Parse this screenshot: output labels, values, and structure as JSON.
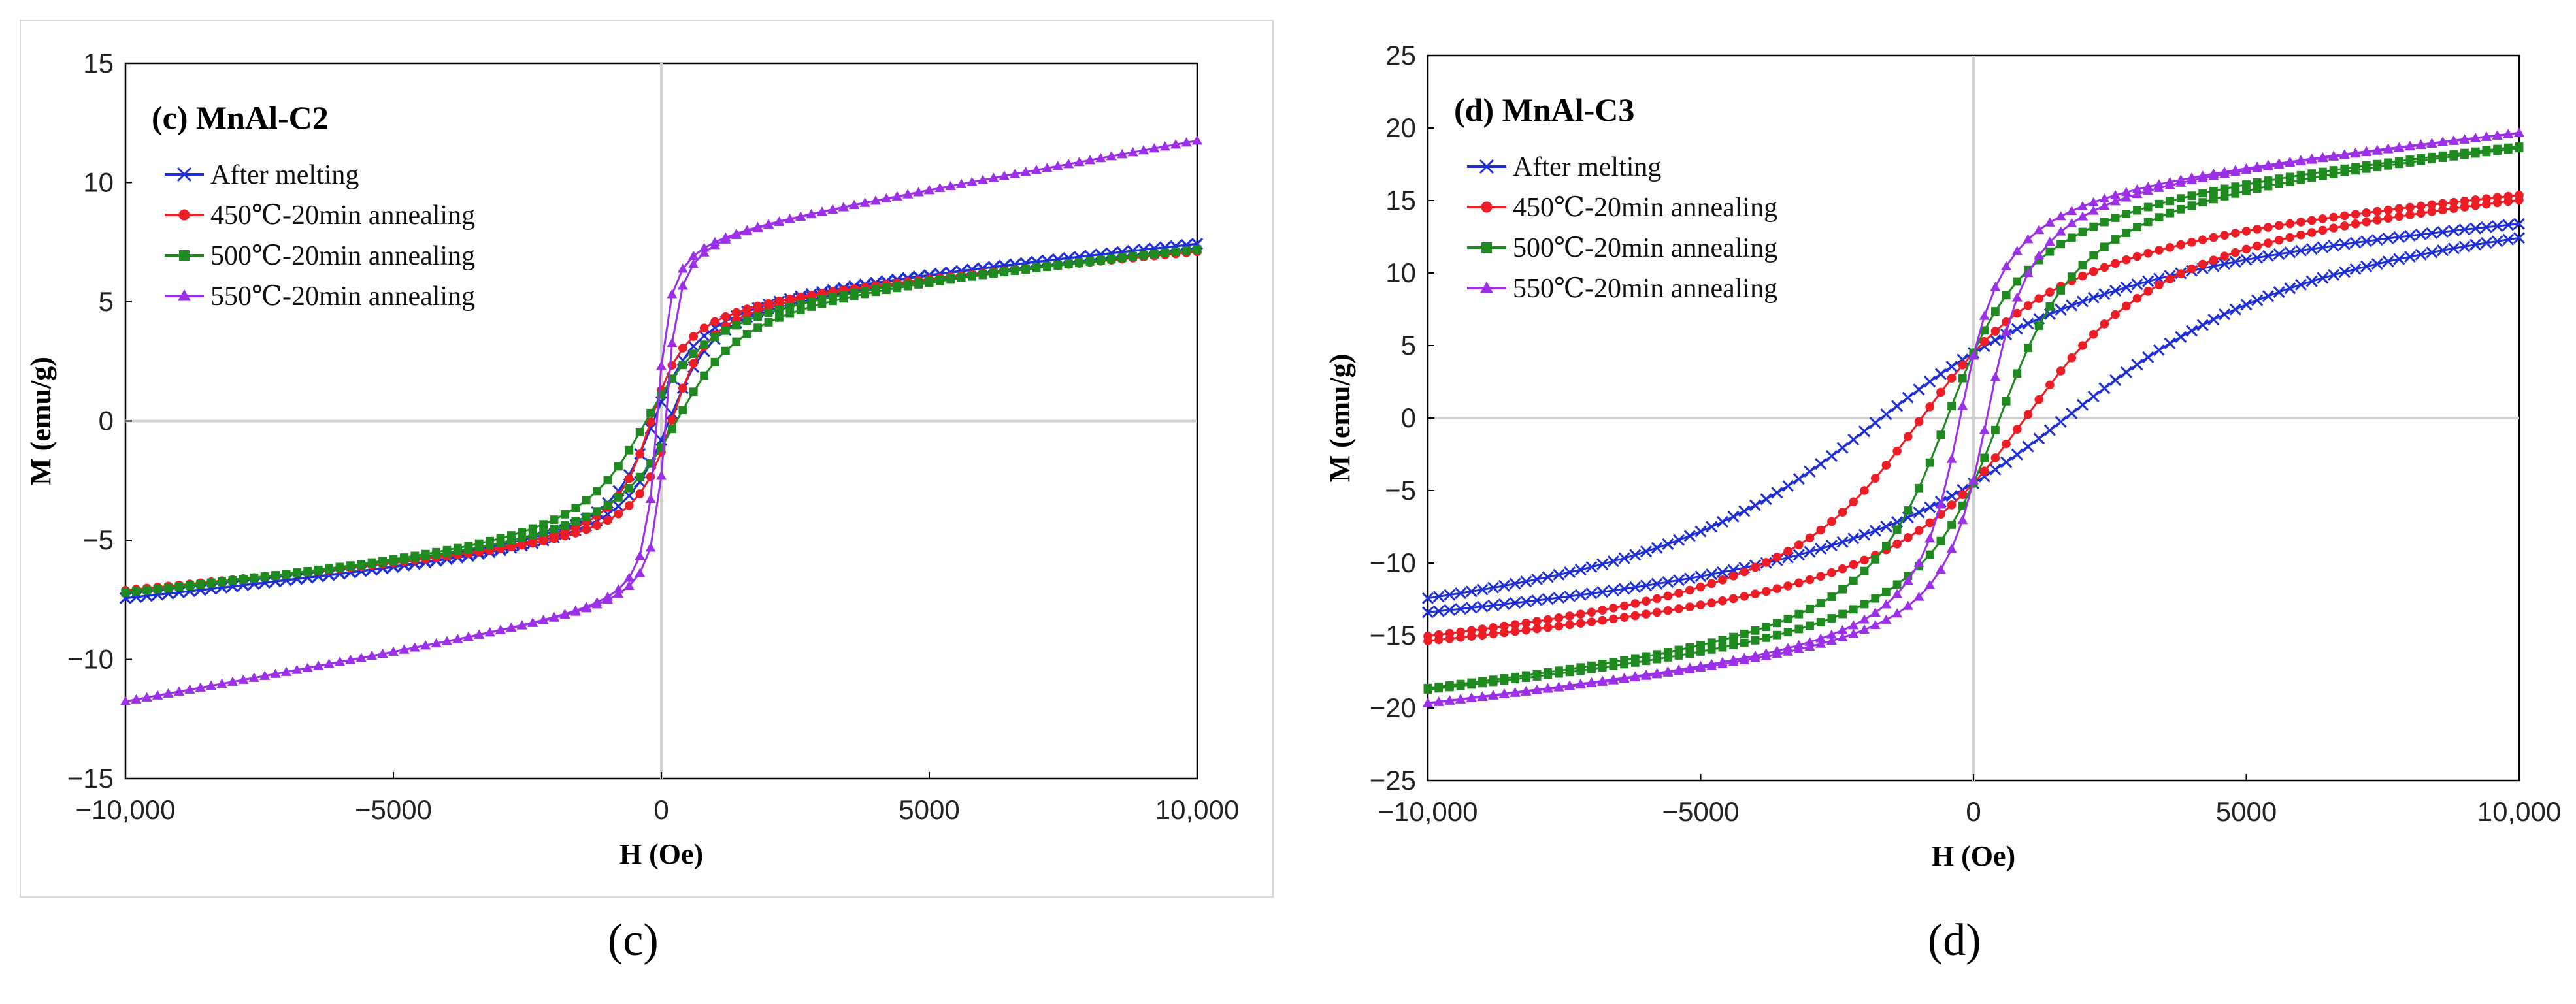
{
  "chart_data": [
    {
      "type": "line",
      "panel": "c",
      "title": "(c) MnAl-C2",
      "xlabel": "H (Oe)",
      "ylabel": "M (emu/g)",
      "xlim": [
        -10000,
        10000
      ],
      "ylim": [
        -15,
        15
      ],
      "x_ticks": [
        -10000,
        -5000,
        0,
        5000,
        10000
      ],
      "x_tick_labels": [
        "−10,000",
        "−5000",
        "0",
        "5000",
        "10,000"
      ],
      "y_ticks": [
        15,
        10,
        5,
        0,
        -5,
        -10,
        -15
      ],
      "y_tick_labels": [
        "15",
        "10",
        "5",
        "0",
        "−5",
        "−10",
        "−15"
      ],
      "legend_position": "top-left",
      "series": [
        {
          "name": "After melting",
          "color": "#1f2fd6",
          "marker": "x",
          "ms": 7.6,
          "hc": 150,
          "mr": 0.8,
          "chi": 0.00022
        },
        {
          "name": "450℃-20min annealing",
          "color": "#ee1c24",
          "marker": "circle",
          "ms": 7.2,
          "hc": 200,
          "mr": 1.3,
          "chi": 0.0002
        },
        {
          "name": "500℃-20min annealing",
          "color": "#1f8a1f",
          "marker": "square",
          "ms": 7.4,
          "hc": 300,
          "mr": 1.1,
          "chi": 0.00021
        },
        {
          "name": "550℃-20min annealing",
          "color": "#9b30e8",
          "marker": "triangle",
          "ms": 11.8,
          "hc": 80,
          "mr": 2.3,
          "chi": 0.0004
        }
      ],
      "caption": "(c)"
    },
    {
      "type": "line",
      "panel": "d",
      "title": "(d) MnAl-C3",
      "xlabel": "H (Oe)",
      "ylabel": "M (emu/g)",
      "xlim": [
        -10000,
        10000
      ],
      "ylim": [
        -25,
        25
      ],
      "x_ticks": [
        -10000,
        -5000,
        0,
        5000,
        10000
      ],
      "x_tick_labels": [
        "−10,000",
        "−5000",
        "0",
        "5000",
        "10,000"
      ],
      "y_ticks": [
        25,
        20,
        15,
        10,
        5,
        0,
        -5,
        -10,
        -15,
        -20,
        -25
      ],
      "y_tick_labels": [
        "25",
        "20",
        "15",
        "10",
        "5",
        "0",
        "−5",
        "−10",
        "−15",
        "−20",
        "−25"
      ],
      "legend_position": "top-left",
      "series": [
        {
          "name": "After melting",
          "color": "#1f2fd6",
          "marker": "x",
          "ms": 14.2,
          "hc": 1800,
          "mr": 4.5,
          "chi": 0.00018
        },
        {
          "name": "450℃-20min annealing",
          "color": "#ee1c24",
          "marker": "circle",
          "ms": 16.0,
          "hc": 1000,
          "mr": 4.5,
          "chi": 0.00025
        },
        {
          "name": "500℃-20min annealing",
          "color": "#1f8a1f",
          "marker": "square",
          "ms": 19.3,
          "hc": 500,
          "mr": 4.5,
          "chi": 0.00033
        },
        {
          "name": "550℃-20min annealing",
          "color": "#9b30e8",
          "marker": "triangle",
          "ms": 20.0,
          "hc": 250,
          "mr": 4.3,
          "chi": 0.00038
        }
      ],
      "caption": "(d)"
    }
  ]
}
